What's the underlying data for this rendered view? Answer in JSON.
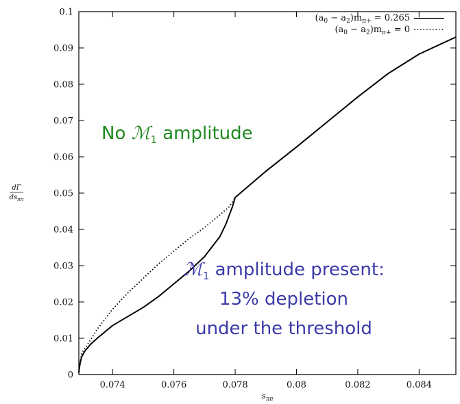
{
  "chart_data": {
    "type": "line",
    "xlabel": "s_{ππ}",
    "ylabel": "dΓ/ds_{ππ}",
    "xlim": [
      0.0729,
      0.0852
    ],
    "ylim": [
      0,
      0.1
    ],
    "xticks": [
      0.074,
      0.076,
      0.078,
      0.08,
      0.082,
      0.084
    ],
    "xtick_labels": [
      "0.074",
      "0.076",
      "0.078",
      "0.08",
      "0.082",
      "0.084"
    ],
    "yticks": [
      0,
      0.01,
      0.02,
      0.03,
      0.04,
      0.05,
      0.06,
      0.07,
      0.08,
      0.09,
      0.1
    ],
    "ytick_labels": [
      "0",
      "0.01",
      "0.02",
      "0.03",
      "0.04",
      "0.05",
      "0.06",
      "0.07",
      "0.08",
      "0.09",
      "0.1"
    ],
    "legend_position": "top-right",
    "series": [
      {
        "name": "(a0 − a2)mπ+ = 0.265",
        "style": "solid",
        "color": "#000000",
        "x": [
          0.0729,
          0.07292,
          0.07295,
          0.073,
          0.0731,
          0.0732,
          0.0733,
          0.0735,
          0.074,
          0.0745,
          0.075,
          0.0755,
          0.076,
          0.0765,
          0.077,
          0.0775,
          0.0777,
          0.0779,
          0.078,
          0.079,
          0.08,
          0.081,
          0.082,
          0.083,
          0.084,
          0.0852
        ],
        "y": [
          0.0005,
          0.002,
          0.0035,
          0.005,
          0.0065,
          0.0075,
          0.0085,
          0.01,
          0.0135,
          0.016,
          0.0185,
          0.0215,
          0.025,
          0.0285,
          0.0325,
          0.038,
          0.0415,
          0.046,
          0.0488,
          0.056,
          0.0627,
          0.0696,
          0.0765,
          0.083,
          0.0883,
          0.093
        ]
      },
      {
        "name": "(a0 − a2)mπ+ = 0",
        "style": "dotted",
        "color": "#000000",
        "x": [
          0.0729,
          0.07295,
          0.073,
          0.0732,
          0.0735,
          0.074,
          0.0745,
          0.075,
          0.0755,
          0.076,
          0.0765,
          0.077,
          0.0775,
          0.0778,
          0.078,
          0.079,
          0.08,
          0.081,
          0.082,
          0.083,
          0.084,
          0.0852
        ],
        "y": [
          0.0005,
          0.004,
          0.006,
          0.0085,
          0.0125,
          0.018,
          0.0225,
          0.0265,
          0.0305,
          0.034,
          0.0375,
          0.0405,
          0.044,
          0.0462,
          0.0488,
          0.056,
          0.0627,
          0.0696,
          0.0765,
          0.083,
          0.0883,
          0.093
        ]
      }
    ],
    "annotations": [
      {
        "id": "no-m1",
        "script": "ℳ",
        "subscript": "1",
        "before": "No ",
        "after": " amplitude",
        "color": "#1f8a1f"
      },
      {
        "id": "m1-present",
        "lines": [
          "ℳ1 amplitude present:",
          "13% depletion",
          "under the threshold"
        ],
        "script": "ℳ",
        "subscript": "1",
        "after": " amplitude present:",
        "line2": "13% depletion",
        "line3": "under the threshold",
        "color": "#3a3aa8"
      }
    ]
  }
}
